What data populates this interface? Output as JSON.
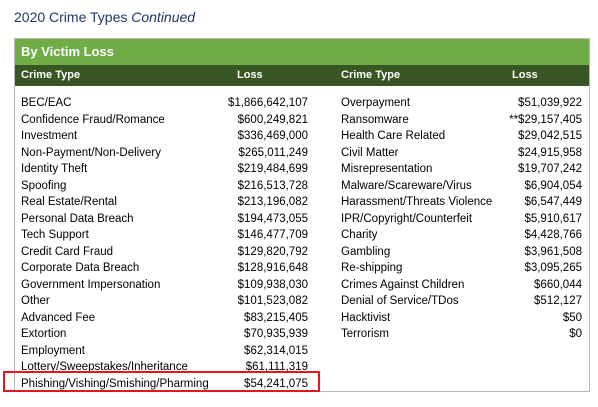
{
  "page_title": {
    "main": "2020 Crime Types",
    "suffix": "Continued"
  },
  "section_title": "By Victim Loss",
  "columns": {
    "type": "Crime Type",
    "loss": "Loss"
  },
  "rows": [
    {
      "left_type": "BEC/EAC",
      "left_loss": "$1,866,642,107",
      "right_type": "Overpayment",
      "right_loss": "$51,039,922"
    },
    {
      "left_type": "Confidence Fraud/Romance",
      "left_loss": "$600,249,821",
      "right_type": "Ransomware",
      "right_loss": "**$29,157,405"
    },
    {
      "left_type": "Investment",
      "left_loss": "$336,469,000",
      "right_type": "Health Care Related",
      "right_loss": "$29,042,515"
    },
    {
      "left_type": "Non-Payment/Non-Delivery",
      "left_loss": "$265,011,249",
      "right_type": "Civil Matter",
      "right_loss": "$24,915,958"
    },
    {
      "left_type": "Identity Theft",
      "left_loss": "$219,484,699",
      "right_type": "Misrepresentation",
      "right_loss": "$19,707,242"
    },
    {
      "left_type": "Spoofing",
      "left_loss": "$216,513,728",
      "right_type": "Malware/Scareware/Virus",
      "right_loss": "$6,904,054"
    },
    {
      "left_type": "Real Estate/Rental",
      "left_loss": "$213,196,082",
      "right_type": "Harassment/Threats Violence",
      "right_loss": "$6,547,449"
    },
    {
      "left_type": "Personal Data Breach",
      "left_loss": "$194,473,055",
      "right_type": "IPR/Copyright/Counterfeit",
      "right_loss": "$5,910,617"
    },
    {
      "left_type": "Tech Support",
      "left_loss": "$146,477,709",
      "right_type": "Charity",
      "right_loss": "$4,428,766"
    },
    {
      "left_type": "Credit Card Fraud",
      "left_loss": "$129,820,792",
      "right_type": "Gambling",
      "right_loss": "$3,961,508"
    },
    {
      "left_type": "Corporate Data Breach",
      "left_loss": "$128,916,648",
      "right_type": "Re-shipping",
      "right_loss": "$3,095,265"
    },
    {
      "left_type": "Government Impersonation",
      "left_loss": "$109,938,030",
      "right_type": "Crimes Against Children",
      "right_loss": "$660,044"
    },
    {
      "left_type": "Other",
      "left_loss": "$101,523,082",
      "right_type": "Denial of Service/TDos",
      "right_loss": "$512,127"
    },
    {
      "left_type": "Advanced Fee",
      "left_loss": "$83,215,405",
      "right_type": "Hacktivist",
      "right_loss": "$50"
    },
    {
      "left_type": "Extortion",
      "left_loss": "$70,935,939",
      "right_type": "Terrorism",
      "right_loss": "$0"
    },
    {
      "left_type": "Employment",
      "left_loss": "$62,314,015",
      "right_type": "",
      "right_loss": ""
    },
    {
      "left_type": "Lottery/Sweepstakes/Inheritance",
      "left_loss": "$61,111,319",
      "right_type": "",
      "right_loss": ""
    },
    {
      "left_type": "Phishing/Vishing/Smishing/Pharming",
      "left_loss": "$54,241,075",
      "right_type": "",
      "right_loss": ""
    }
  ],
  "colors": {
    "section_green": "#70ad47",
    "header_dark_green": "#375623",
    "title_navy": "#1f3864",
    "highlight_red": "#e3151e"
  }
}
